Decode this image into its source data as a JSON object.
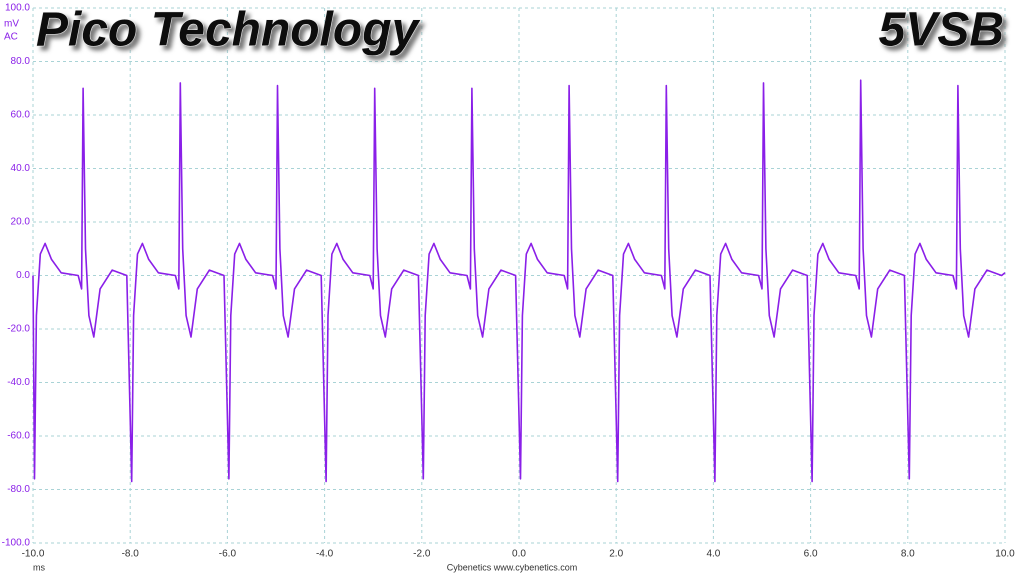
{
  "chart_data": {
    "type": "line",
    "title": "Pico Technology",
    "subtitle": "5VSB",
    "y_unit": "mV",
    "y_coupling": "AC",
    "x_label": "ms",
    "footer": "Cybenetics  www.cybenetics.com",
    "xlim": [
      -10,
      10
    ],
    "ylim": [
      -100,
      100
    ],
    "xticks": [
      {
        "value": -10,
        "label": "-10.0"
      },
      {
        "value": -8,
        "label": "-8.0"
      },
      {
        "value": -6,
        "label": "-6.0"
      },
      {
        "value": -4,
        "label": "-4.0"
      },
      {
        "value": -2,
        "label": "-2.0"
      },
      {
        "value": 0,
        "label": "0.0"
      },
      {
        "value": 2,
        "label": "2.0"
      },
      {
        "value": 4,
        "label": "4.0"
      },
      {
        "value": 6,
        "label": "6.0"
      },
      {
        "value": 8,
        "label": "8.0"
      },
      {
        "value": 10,
        "label": "10.0"
      }
    ],
    "yticks": [
      {
        "value": -100,
        "label": "-100.0"
      },
      {
        "value": -80,
        "label": "-80.0"
      },
      {
        "value": -60,
        "label": "-60.0"
      },
      {
        "value": -40,
        "label": "-40.0"
      },
      {
        "value": -20,
        "label": "-20.0"
      },
      {
        "value": 0,
        "label": "0.0"
      },
      {
        "value": 20,
        "label": "20.0"
      },
      {
        "value": 40,
        "label": "40.0"
      },
      {
        "value": 60,
        "label": "60.0"
      },
      {
        "value": 80,
        "label": "80.0"
      },
      {
        "value": 100,
        "label": "100.0"
      }
    ],
    "grid": true,
    "x": [
      -10.0,
      -9.97,
      -9.93,
      -9.85,
      -9.75,
      -9.62,
      -9.42,
      -9.07,
      -9.0,
      -8.97,
      -8.92,
      -8.85,
      -8.75,
      -8.62,
      -8.37,
      -8.07,
      -7.97,
      -7.93,
      -7.85,
      -7.75,
      -7.62,
      -7.42,
      -7.07,
      -7.0,
      -6.97,
      -6.92,
      -6.85,
      -6.75,
      -6.62,
      -6.37,
      -6.07,
      -5.97,
      -5.93,
      -5.85,
      -5.75,
      -5.62,
      -5.42,
      -5.07,
      -5.0,
      -4.97,
      -4.92,
      -4.85,
      -4.75,
      -4.62,
      -4.37,
      -4.07,
      -3.97,
      -3.93,
      -3.85,
      -3.75,
      -3.62,
      -3.42,
      -3.07,
      -3.0,
      -2.97,
      -2.92,
      -2.85,
      -2.75,
      -2.62,
      -2.37,
      -2.07,
      -1.97,
      -1.93,
      -1.85,
      -1.75,
      -1.62,
      -1.42,
      -1.07,
      -1.0,
      -0.97,
      -0.92,
      -0.85,
      -0.75,
      -0.62,
      -0.37,
      -0.07,
      0.03,
      0.07,
      0.15,
      0.25,
      0.38,
      0.58,
      0.93,
      1.0,
      1.03,
      1.08,
      1.15,
      1.25,
      1.38,
      1.63,
      1.93,
      2.03,
      2.07,
      2.15,
      2.25,
      2.38,
      2.58,
      2.93,
      3.0,
      3.03,
      3.08,
      3.15,
      3.25,
      3.38,
      3.63,
      3.93,
      4.03,
      4.07,
      4.15,
      4.25,
      4.38,
      4.58,
      4.93,
      5.0,
      5.03,
      5.08,
      5.15,
      5.25,
      5.38,
      5.63,
      5.93,
      6.03,
      6.07,
      6.15,
      6.25,
      6.38,
      6.58,
      6.93,
      7.0,
      7.03,
      7.08,
      7.15,
      7.25,
      7.38,
      7.63,
      7.93,
      8.03,
      8.07,
      8.15,
      8.25,
      8.38,
      8.58,
      8.93,
      9.0,
      9.03,
      9.08,
      9.15,
      9.25,
      9.38,
      9.63,
      9.93,
      10.0
    ],
    "series": [
      {
        "name": "5VSB",
        "color": "#8a1fe8",
        "values": [
          0,
          -76,
          -15,
          8,
          12,
          6,
          1,
          0,
          -5,
          70,
          10,
          -15,
          -23,
          -5,
          2,
          0,
          -77,
          -15,
          8,
          12,
          6,
          1,
          0,
          -5,
          72,
          10,
          -15,
          -23,
          -5,
          2,
          0,
          -76,
          -15,
          8,
          12,
          6,
          1,
          0,
          -5,
          71,
          10,
          -15,
          -23,
          -5,
          2,
          0,
          -77,
          -15,
          8,
          12,
          6,
          1,
          0,
          -5,
          70,
          10,
          -15,
          -23,
          -5,
          2,
          0,
          -76,
          -15,
          8,
          12,
          6,
          1,
          0,
          -5,
          70,
          10,
          -15,
          -23,
          -5,
          2,
          0,
          -76,
          -15,
          8,
          12,
          6,
          1,
          0,
          -5,
          71,
          10,
          -15,
          -23,
          -5,
          2,
          0,
          -77,
          -15,
          8,
          12,
          6,
          1,
          0,
          -5,
          71,
          10,
          -15,
          -23,
          -5,
          2,
          0,
          -77,
          -15,
          8,
          12,
          6,
          1,
          0,
          -5,
          72,
          10,
          -15,
          -23,
          -5,
          2,
          0,
          -77,
          -15,
          8,
          12,
          6,
          1,
          0,
          -5,
          73,
          10,
          -15,
          -23,
          -5,
          2,
          0,
          -76,
          -15,
          8,
          12,
          6,
          1,
          0,
          -5,
          71,
          10,
          -15,
          -23,
          -5,
          2,
          0,
          1
        ]
      }
    ]
  }
}
